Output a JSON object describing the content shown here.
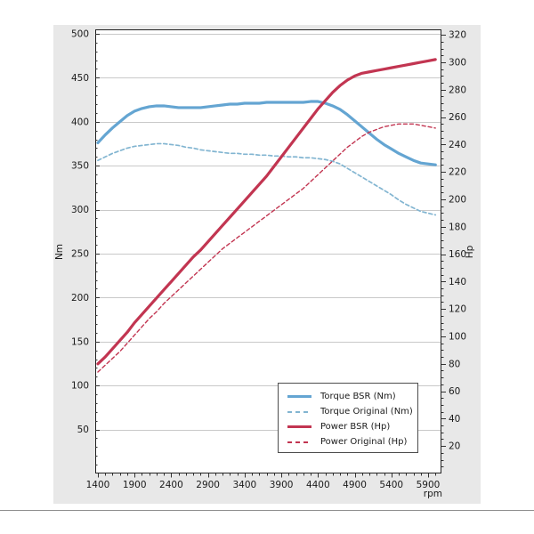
{
  "page": {
    "background": "#ffffff",
    "figure_background": "#e8e8e8",
    "plot_background": "#ffffff",
    "plot_border_color": "#222222",
    "gridline_color": "#c9c9c9",
    "tick_color": "#333333",
    "text_color": "#1a1a1a",
    "bottom_rule_color": "#8f8f8f"
  },
  "chart_data": {
    "type": "line",
    "title": "",
    "xlabel": "rpm",
    "ylabel_left": "Nm",
    "ylabel_right": "Hp",
    "grid": "horizontal-left-ticks",
    "legend_position": "lower-right",
    "x_range": [
      1364,
      6082
    ],
    "y_left_range": [
      0,
      505
    ],
    "y_right_range": [
      0,
      324
    ],
    "x_ticks": [
      1400,
      1900,
      2400,
      2900,
      3400,
      3900,
      4400,
      4900,
      5400,
      5900
    ],
    "x_minor_step": 100,
    "y_left_ticks": [
      50,
      100,
      150,
      200,
      250,
      300,
      350,
      400,
      450,
      500
    ],
    "y_left_minor_step": 10,
    "y_right_ticks": [
      20,
      40,
      60,
      80,
      100,
      120,
      140,
      160,
      180,
      200,
      220,
      240,
      260,
      280,
      300,
      320
    ],
    "y_right_minor_step": 5,
    "x": [
      1400,
      1500,
      1600,
      1700,
      1800,
      1900,
      2000,
      2100,
      2200,
      2300,
      2400,
      2500,
      2600,
      2700,
      2800,
      2900,
      3000,
      3100,
      3200,
      3300,
      3400,
      3500,
      3600,
      3700,
      3800,
      3900,
      4000,
      4100,
      4200,
      4300,
      4400,
      4500,
      4600,
      4700,
      4800,
      4900,
      5000,
      5100,
      5200,
      5300,
      5400,
      5500,
      5600,
      5700,
      5800,
      5900,
      6000
    ],
    "series": [
      {
        "name": "Torque BSR (Nm)",
        "axis": "left",
        "unit": "Nm",
        "line": "solid",
        "color": "#64a5d2",
        "width": 3.2,
        "values": [
          376,
          385,
          393,
          400,
          407,
          412,
          415,
          417,
          418,
          418,
          417,
          416,
          416,
          416,
          416,
          417,
          418,
          419,
          420,
          420,
          421,
          421,
          421,
          422,
          422,
          422,
          422,
          422,
          422,
          423,
          423,
          421,
          418,
          414,
          408,
          401,
          394,
          387,
          380,
          374,
          369,
          364,
          360,
          356,
          353,
          352,
          351
        ]
      },
      {
        "name": "Torque Original (Nm)",
        "axis": "left",
        "unit": "Nm",
        "line": "dashed",
        "color": "#82b5d1",
        "width": 1.7,
        "values": [
          356,
          360,
          364,
          367,
          370,
          372,
          373,
          374,
          375,
          375,
          374,
          373,
          371,
          370,
          368,
          367,
          366,
          365,
          364,
          364,
          363,
          363,
          362,
          362,
          361,
          361,
          360,
          360,
          359,
          359,
          358,
          357,
          355,
          352,
          347,
          342,
          337,
          332,
          327,
          322,
          317,
          311,
          306,
          302,
          298,
          296,
          294
        ]
      },
      {
        "name": "Power BSR (Hp)",
        "axis": "right",
        "unit": "Hp",
        "line": "solid",
        "color": "#c23551",
        "width": 3.2,
        "values": [
          80,
          85,
          91,
          97,
          103,
          110,
          116,
          122,
          128,
          134,
          140,
          146,
          152,
          158,
          163,
          169,
          175,
          181,
          187,
          193,
          199,
          205,
          211,
          217,
          224,
          231,
          238,
          245,
          252,
          259,
          266,
          272,
          278,
          283,
          287,
          290,
          292,
          293,
          294,
          295,
          296,
          297,
          298,
          299,
          300,
          301,
          302
        ]
      },
      {
        "name": "Power Original (Hp)",
        "axis": "right",
        "unit": "Hp",
        "line": "dashed",
        "color": "#c23551",
        "width": 1.4,
        "values": [
          74,
          79,
          84,
          89,
          95,
          101,
          107,
          113,
          118,
          124,
          129,
          134,
          139,
          144,
          149,
          154,
          159,
          164,
          168,
          172,
          176,
          180,
          184,
          188,
          192,
          196,
          200,
          204,
          208,
          213,
          218,
          223,
          228,
          233,
          238,
          242,
          246,
          249,
          251,
          253,
          254,
          255,
          255,
          255,
          254,
          253,
          252
        ]
      }
    ]
  },
  "legend": {
    "items": [
      {
        "label": "Torque BSR (Nm)"
      },
      {
        "label": "Torque Original (Nm)"
      },
      {
        "label": "Power BSR (Hp)"
      },
      {
        "label": "Power Original (Hp)"
      }
    ]
  }
}
